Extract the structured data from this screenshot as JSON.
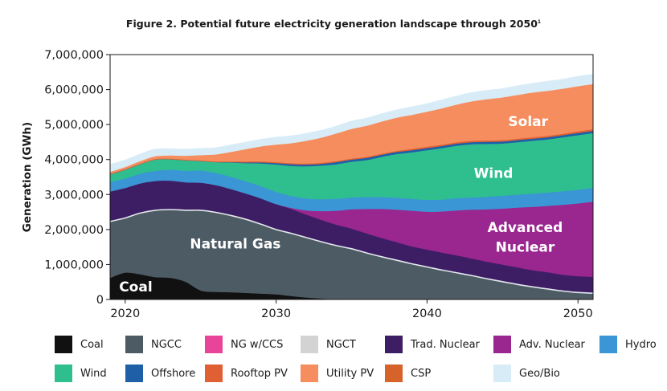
{
  "title": {
    "text": "Figure 2. Potential future electricity generation landscape through 2050",
    "footnote": "1"
  },
  "chart_data": {
    "type": "area",
    "stacked": true,
    "ylabel": "Generation (GWh)",
    "xlabel": "",
    "xlim": [
      2019,
      2051
    ],
    "ylim": [
      0,
      7000000
    ],
    "x_ticks": [
      2020,
      2030,
      2040,
      2050
    ],
    "y_ticks": [
      {
        "value": 0,
        "label": "0"
      },
      {
        "value": 1000000,
        "label": "1,000,000"
      },
      {
        "value": 2000000,
        "label": "2,000,000"
      },
      {
        "value": 3000000,
        "label": "3,000,000"
      },
      {
        "value": 4000000,
        "label": "4,000,000"
      },
      {
        "value": 5000000,
        "label": "5,000,000"
      },
      {
        "value": 6000000,
        "label": "6,000,000"
      },
      {
        "value": 7000000,
        "label": "7,000,000"
      }
    ],
    "grid": false,
    "x": [
      2019,
      2020,
      2021,
      2022,
      2023,
      2024,
      2025,
      2026,
      2027,
      2028,
      2029,
      2030,
      2031,
      2032,
      2033,
      2034,
      2035,
      2036,
      2037,
      2038,
      2039,
      2040,
      2041,
      2042,
      2043,
      2044,
      2045,
      2046,
      2047,
      2048,
      2049,
      2050,
      2051
    ],
    "series": [
      {
        "name": "Coal",
        "color": "#111111",
        "values": [
          620000,
          770000,
          720000,
          640000,
          620000,
          510000,
          260000,
          220000,
          210000,
          190000,
          170000,
          150000,
          100000,
          60000,
          30000,
          10000,
          0,
          0,
          0,
          0,
          0,
          0,
          0,
          0,
          0,
          0,
          0,
          0,
          0,
          0,
          0,
          0,
          0
        ]
      },
      {
        "name": "NGCC",
        "color": "#4d5b65",
        "values": [
          1610000,
          1560000,
          1750000,
          1910000,
          1950000,
          2040000,
          2290000,
          2270000,
          2190000,
          2100000,
          1980000,
          1850000,
          1790000,
          1710000,
          1620000,
          1530000,
          1450000,
          1330000,
          1220000,
          1120000,
          1020000,
          930000,
          840000,
          760000,
          680000,
          590000,
          510000,
          430000,
          360000,
          300000,
          240000,
          200000,
          180000
        ]
      },
      {
        "name": "NG w/CCS",
        "color": "#e8449a",
        "values": [
          0,
          0,
          0,
          0,
          0,
          0,
          0,
          0,
          0,
          0,
          0,
          0,
          0,
          0,
          0,
          0,
          0,
          0,
          0,
          0,
          0,
          0,
          0,
          0,
          0,
          0,
          0,
          0,
          0,
          0,
          0,
          0,
          0
        ]
      },
      {
        "name": "NGCT",
        "color": "#d3d3d3",
        "values": [
          0,
          0,
          0,
          0,
          0,
          0,
          0,
          0,
          0,
          0,
          0,
          0,
          0,
          0,
          0,
          0,
          0,
          0,
          0,
          0,
          0,
          0,
          0,
          0,
          0,
          0,
          0,
          0,
          0,
          0,
          0,
          0,
          0
        ]
      },
      {
        "name": "Trad. Nuclear",
        "color": "#3d1e64",
        "values": [
          860000,
          860000,
          850000,
          840000,
          830000,
          800000,
          790000,
          780000,
          760000,
          740000,
          740000,
          730000,
          700000,
          660000,
          630000,
          600000,
          580000,
          560000,
          540000,
          520000,
          500000,
          500000,
          500000,
          500000,
          490000,
          490000,
          490000,
          490000,
          480000,
          480000,
          470000,
          470000,
          470000
        ]
      },
      {
        "name": "Adv. Nuclear",
        "color": "#9a2690",
        "values": [
          0,
          0,
          0,
          0,
          0,
          0,
          0,
          0,
          0,
          0,
          0,
          0,
          30000,
          120000,
          250000,
          400000,
          550000,
          700000,
          830000,
          930000,
          1020000,
          1080000,
          1180000,
          1290000,
          1400000,
          1500000,
          1600000,
          1710000,
          1810000,
          1900000,
          2000000,
          2080000,
          2150000
        ]
      },
      {
        "name": "Hydro",
        "color": "#3a96d4",
        "values": [
          270000,
          270000,
          280000,
          290000,
          310000,
          330000,
          350000,
          350000,
          350000,
          350000,
          350000,
          350000,
          340000,
          340000,
          340000,
          340000,
          340000,
          340000,
          340000,
          340000,
          340000,
          340000,
          340000,
          350000,
          350000,
          360000,
          370000,
          370000,
          380000,
          380000,
          390000,
          390000,
          400000
        ]
      },
      {
        "name": "Wind",
        "color": "#2fbf8f",
        "values": [
          220000,
          250000,
          270000,
          320000,
          300000,
          300000,
          270000,
          310000,
          410000,
          520000,
          650000,
          780000,
          860000,
          920000,
          960000,
          990000,
          1020000,
          1060000,
          1150000,
          1250000,
          1330000,
          1420000,
          1470000,
          1500000,
          1520000,
          1510000,
          1490000,
          1500000,
          1510000,
          1520000,
          1540000,
          1560000,
          1560000
        ]
      },
      {
        "name": "Offshore",
        "color": "#1f5fa8",
        "values": [
          0,
          0,
          0,
          0,
          0,
          0,
          0,
          0,
          10000,
          20000,
          30000,
          40000,
          50000,
          50000,
          50000,
          60000,
          60000,
          60000,
          60000,
          60000,
          60000,
          60000,
          60000,
          60000,
          60000,
          60000,
          60000,
          60000,
          60000,
          60000,
          60000,
          60000,
          60000
        ]
      },
      {
        "name": "Rooftop PV",
        "color": "#e06034",
        "values": [
          20000,
          20000,
          20000,
          20000,
          20000,
          20000,
          20000,
          20000,
          20000,
          30000,
          30000,
          30000,
          30000,
          30000,
          30000,
          30000,
          30000,
          30000,
          30000,
          30000,
          40000,
          40000,
          40000,
          40000,
          40000,
          40000,
          40000,
          40000,
          40000,
          40000,
          40000,
          50000,
          50000
        ]
      },
      {
        "name": "Utility PV",
        "color": "#f68d5e",
        "values": [
          50000,
          60000,
          70000,
          80000,
          90000,
          110000,
          150000,
          200000,
          270000,
          350000,
          430000,
          500000,
          570000,
          650000,
          720000,
          790000,
          850000,
          890000,
          920000,
          950000,
          970000,
          1000000,
          1040000,
          1080000,
          1130000,
          1180000,
          1220000,
          1250000,
          1280000,
          1290000,
          1290000,
          1290000,
          1290000
        ]
      },
      {
        "name": "CSP",
        "color": "#d6632a",
        "values": [
          0,
          0,
          0,
          0,
          0,
          0,
          0,
          0,
          0,
          0,
          0,
          0,
          0,
          0,
          0,
          0,
          0,
          0,
          0,
          0,
          0,
          0,
          0,
          0,
          0,
          0,
          0,
          0,
          0,
          0,
          0,
          0,
          0
        ]
      },
      {
        "name": "Geo/Bio",
        "color": "#d8ecf7",
        "values": [
          210000,
          200000,
          200000,
          200000,
          190000,
          190000,
          190000,
          190000,
          200000,
          200000,
          200000,
          210000,
          210000,
          210000,
          210000,
          210000,
          220000,
          220000,
          220000,
          220000,
          230000,
          230000,
          240000,
          240000,
          250000,
          250000,
          250000,
          260000,
          260000,
          270000,
          270000,
          280000,
          280000
        ]
      }
    ],
    "annotations": [
      {
        "text": "Coal",
        "color": "#ffffff",
        "x": 2020.7,
        "y": 230000
      },
      {
        "text": "Natural Gas",
        "color": "#ffffff",
        "x": 2027.3,
        "y": 1460000
      },
      {
        "text": "Advanced",
        "color": "#ffffff",
        "x": 2046.5,
        "y": 1930000
      },
      {
        "text": "Nuclear",
        "color": "#ffffff",
        "x": 2046.5,
        "y": 1360000
      },
      {
        "text": "Wind",
        "color": "#ffffff",
        "x": 2044.4,
        "y": 3480000
      },
      {
        "text": "Solar",
        "color": "#ffffff",
        "x": 2046.7,
        "y": 4960000
      }
    ]
  },
  "legend": {
    "items": [
      {
        "label": "Coal",
        "color": "#111111"
      },
      {
        "label": "NGCC",
        "color": "#4d5b65"
      },
      {
        "label": "NG w/CCS",
        "color": "#e8449a"
      },
      {
        "label": "NGCT",
        "color": "#d3d3d3"
      },
      {
        "label": "Trad. Nuclear",
        "color": "#3d1e64"
      },
      {
        "label": "Adv. Nuclear",
        "color": "#9a2690"
      },
      {
        "label": "Hydro",
        "color": "#3a96d4"
      },
      {
        "label": "Wind",
        "color": "#2fbf8f"
      },
      {
        "label": "Offshore",
        "color": "#1f5fa8"
      },
      {
        "label": "Rooftop PV",
        "color": "#e06034"
      },
      {
        "label": "Utility PV",
        "color": "#f68d5e"
      },
      {
        "label": "CSP",
        "color": "#d6632a"
      },
      {
        "label": "Geo/Bio",
        "color": "#d8ecf7"
      }
    ]
  }
}
